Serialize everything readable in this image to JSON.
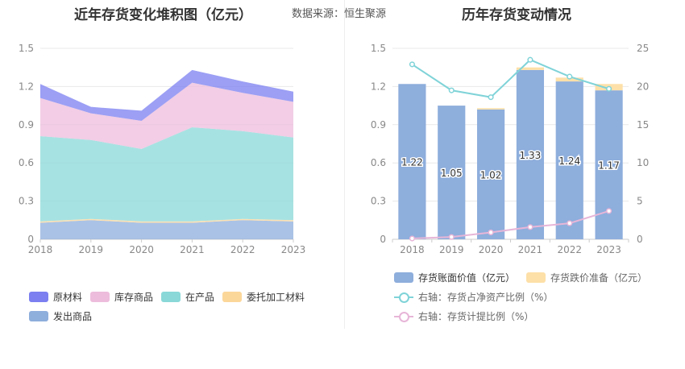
{
  "header": {
    "source_label": "数据来源：恒生聚源"
  },
  "colors": {
    "raw_materials": "#7b7ff0",
    "finished_goods": "#edbcdc",
    "wip": "#8ad8d8",
    "outsourced": "#fcd79a",
    "shipped": "#8eaedc",
    "bar": "#8eaedc",
    "impairment": "#fde0a8",
    "ratio_line": "#7fd3d8",
    "provision_line": "#e7b6d8"
  },
  "chart_data": [
    {
      "type": "area",
      "title": "近年存货变化堆积图（亿元）",
      "x": [
        "2018",
        "2019",
        "2020",
        "2021",
        "2022",
        "2023"
      ],
      "ylim": [
        0,
        1.5
      ],
      "yticks": [
        "0",
        "0.3",
        "0.6",
        "0.9",
        "1.2",
        "1.5"
      ],
      "stacked": true,
      "series": [
        {
          "name": "发出商品",
          "color_key": "shipped",
          "values": [
            0.13,
            0.15,
            0.13,
            0.13,
            0.15,
            0.14
          ]
        },
        {
          "name": "委托加工材料",
          "color_key": "outsourced",
          "values": [
            0.01,
            0.01,
            0.01,
            0.01,
            0.01,
            0.01
          ]
        },
        {
          "name": "在产品",
          "color_key": "wip",
          "values": [
            0.67,
            0.62,
            0.57,
            0.74,
            0.69,
            0.65
          ]
        },
        {
          "name": "库存商品",
          "color_key": "finished_goods",
          "values": [
            0.3,
            0.21,
            0.22,
            0.35,
            0.3,
            0.28
          ]
        },
        {
          "name": "原材料",
          "color_key": "raw_materials",
          "values": [
            0.11,
            0.05,
            0.08,
            0.1,
            0.09,
            0.08
          ]
        }
      ],
      "legend_order": [
        "原材料",
        "库存商品",
        "在产品",
        "委托加工材料",
        "发出商品"
      ],
      "legend": "bottom",
      "grid": true
    },
    {
      "type": "bar",
      "title": "历年存货变动情况",
      "categories": [
        "2018",
        "2019",
        "2020",
        "2021",
        "2022",
        "2023"
      ],
      "ylim": [
        0,
        1.5
      ],
      "yticks": [
        "0",
        "0.3",
        "0.6",
        "0.9",
        "1.2",
        "1.5"
      ],
      "y2lim": [
        0,
        25
      ],
      "y2ticks": [
        "0",
        "5",
        "10",
        "15",
        "20",
        "25"
      ],
      "series": [
        {
          "name": "存货账面价值（亿元）",
          "values": [
            1.22,
            1.05,
            1.02,
            1.33,
            1.24,
            1.17
          ],
          "data_labels": [
            "1.22",
            "1.05",
            "1.02",
            "1.33",
            "1.24",
            "1.17"
          ]
        },
        {
          "name": "存货跌价准备（亿元）",
          "values": [
            0.0,
            0.0,
            0.01,
            0.02,
            0.03,
            0.05
          ]
        }
      ],
      "lines": [
        {
          "name": "右轴：存货占净资产比例（%）",
          "axis": "right",
          "values": [
            22.9,
            19.5,
            18.6,
            23.5,
            21.3,
            19.7
          ]
        },
        {
          "name": "右轴：存货计提比例（%）",
          "axis": "right",
          "values": [
            0.1,
            0.3,
            0.9,
            1.6,
            2.1,
            3.7
          ]
        }
      ],
      "legend": "bottom",
      "grid": true
    }
  ]
}
